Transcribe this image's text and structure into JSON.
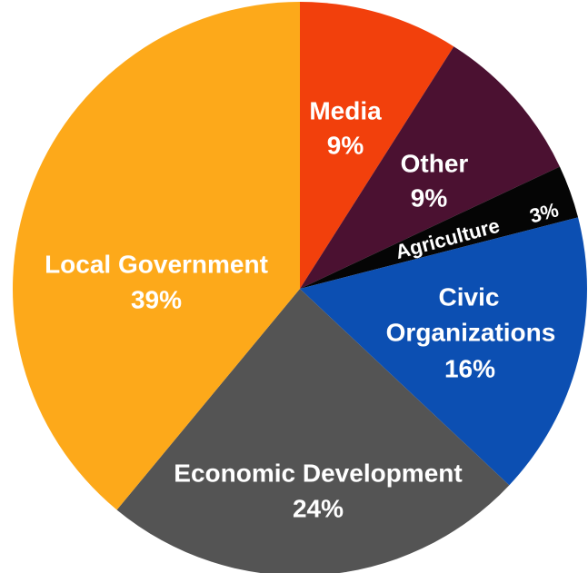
{
  "chart_data": {
    "type": "pie",
    "slices": [
      {
        "label": "Media",
        "value_text": "9%",
        "value": 9,
        "color": "#f2400c"
      },
      {
        "label": "Other",
        "value_text": "9%",
        "value": 9,
        "color": "#4b1131"
      },
      {
        "label": "Agriculture",
        "value_text": "3%",
        "value": 3,
        "color": "#050505"
      },
      {
        "label": "Civic Organizations",
        "value_text": "16%",
        "value": 16,
        "color": "#0c4fb2"
      },
      {
        "label": "Economic Development",
        "value_text": "24%",
        "value": 24,
        "color": "#545454"
      },
      {
        "label": "Local Government",
        "value_text": "39%",
        "value": 39,
        "color": "#fda91a"
      }
    ],
    "start": "12 o'clock",
    "direction": "clockwise"
  }
}
